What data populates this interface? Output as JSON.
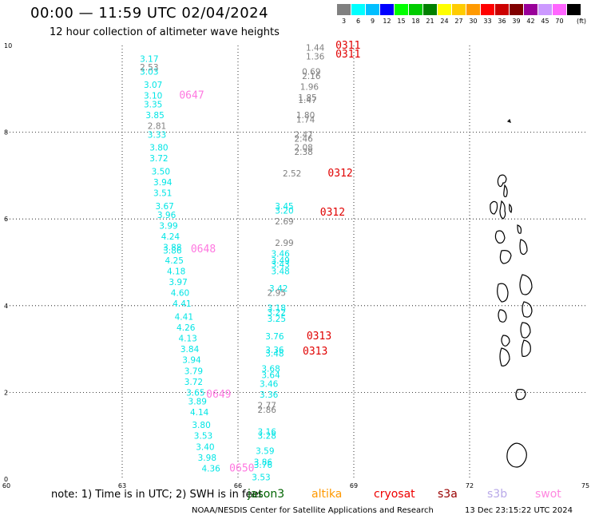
{
  "header": {
    "title": "00:00 — 11:59 UTC 02/04/2024",
    "subtitle": "12 hour collection of altimeter wave heights"
  },
  "colorbar": {
    "unit_label": "(ft)",
    "bins": [
      {
        "label": "3",
        "color": "#808080"
      },
      {
        "label": "6",
        "color": "#00ffff"
      },
      {
        "label": "9",
        "color": "#00bfff"
      },
      {
        "label": "12",
        "color": "#0000ff"
      },
      {
        "label": "15",
        "color": "#00ff00"
      },
      {
        "label": "18",
        "color": "#00cc00"
      },
      {
        "label": "21",
        "color": "#008000"
      },
      {
        "label": "24",
        "color": "#ffff00"
      },
      {
        "label": "27",
        "color": "#ffcc00"
      },
      {
        "label": "30",
        "color": "#ff9900"
      },
      {
        "label": "33",
        "color": "#ff0000"
      },
      {
        "label": "36",
        "color": "#cc0000"
      },
      {
        "label": "39",
        "color": "#800000"
      },
      {
        "label": "42",
        "color": "#990099"
      },
      {
        "label": "45",
        "color": "#cc99ff"
      },
      {
        "label": "70",
        "color": "#ff66ff"
      },
      {
        "label": "",
        "color": "#000000"
      }
    ]
  },
  "axes": {
    "x_ticks": [
      "60",
      "63",
      "66",
      "69",
      "72",
      "75"
    ],
    "y_ticks": [
      "0",
      "2",
      "4",
      "6",
      "8",
      "10"
    ]
  },
  "tracks": [
    {
      "satellite": "s3b",
      "color": "#00e5e5",
      "points": [
        {
          "lon": 63.7,
          "lat": 9.7,
          "label": "3.17"
        },
        {
          "lon": 63.7,
          "lat": 9.4,
          "label": "3.03"
        },
        {
          "lon": 63.8,
          "lat": 9.1,
          "label": "3.07"
        },
        {
          "lon": 63.8,
          "lat": 8.85,
          "label": "3.10"
        },
        {
          "lon": 63.8,
          "lat": 8.65,
          "label": "3.35"
        },
        {
          "lon": 63.85,
          "lat": 8.4,
          "label": "3.85"
        },
        {
          "lon": 63.9,
          "lat": 7.95,
          "label": "3.33"
        },
        {
          "lon": 63.95,
          "lat": 7.65,
          "label": "3.80"
        },
        {
          "lon": 63.95,
          "lat": 7.4,
          "label": "3.72"
        },
        {
          "lon": 64.0,
          "lat": 7.1,
          "label": "3.50"
        },
        {
          "lon": 64.05,
          "lat": 6.85,
          "label": "3.94"
        },
        {
          "lon": 64.05,
          "lat": 6.6,
          "label": "3.51"
        },
        {
          "lon": 64.1,
          "lat": 6.3,
          "label": "3.67"
        },
        {
          "lon": 64.15,
          "lat": 6.1,
          "label": "3.96"
        },
        {
          "lon": 64.2,
          "lat": 5.85,
          "label": "3.99"
        },
        {
          "lon": 64.25,
          "lat": 5.6,
          "label": "4.24"
        },
        {
          "lon": 64.3,
          "lat": 5.35,
          "label": "3.88"
        },
        {
          "lon": 64.3,
          "lat": 5.28,
          "label": "3.86"
        },
        {
          "lon": 64.35,
          "lat": 5.05,
          "label": "4.25"
        },
        {
          "lon": 64.4,
          "lat": 4.8,
          "label": "4.18"
        },
        {
          "lon": 64.45,
          "lat": 4.55,
          "label": "3.97"
        },
        {
          "lon": 64.5,
          "lat": 4.3,
          "label": "4.60"
        },
        {
          "lon": 64.55,
          "lat": 4.05,
          "label": "4.41"
        },
        {
          "lon": 64.6,
          "lat": 3.75,
          "label": "4.41"
        },
        {
          "lon": 64.65,
          "lat": 3.5,
          "label": "4.26"
        },
        {
          "lon": 64.7,
          "lat": 3.25,
          "label": "4.13"
        },
        {
          "lon": 64.75,
          "lat": 3.0,
          "label": "3.84"
        },
        {
          "lon": 64.8,
          "lat": 2.75,
          "label": "3.94"
        },
        {
          "lon": 64.85,
          "lat": 2.5,
          "label": "3.79"
        },
        {
          "lon": 64.85,
          "lat": 2.25,
          "label": "3.72"
        },
        {
          "lon": 64.9,
          "lat": 2.0,
          "label": "3.65"
        },
        {
          "lon": 64.95,
          "lat": 1.8,
          "label": "3.89"
        },
        {
          "lon": 65.0,
          "lat": 1.55,
          "label": "4.14"
        },
        {
          "lon": 65.05,
          "lat": 1.25,
          "label": "3.80"
        },
        {
          "lon": 65.1,
          "lat": 1.0,
          "label": "3.53"
        },
        {
          "lon": 65.15,
          "lat": 0.75,
          "label": "3.40"
        },
        {
          "lon": 65.2,
          "lat": 0.5,
          "label": "3.98"
        },
        {
          "lon": 65.3,
          "lat": 0.25,
          "label": "4.36"
        }
      ]
    },
    {
      "satellite": "jason3",
      "color": "#00e5e5",
      "points": [
        {
          "lon": 67.2,
          "lat": 6.3,
          "label": "3.45"
        },
        {
          "lon": 67.2,
          "lat": 6.2,
          "label": "3.20"
        },
        {
          "lon": 67.1,
          "lat": 5.2,
          "label": "3.46"
        },
        {
          "lon": 67.1,
          "lat": 5.05,
          "label": "3.49"
        },
        {
          "lon": 67.1,
          "lat": 4.95,
          "label": "3.43"
        },
        {
          "lon": 67.1,
          "lat": 4.8,
          "label": "3.48"
        },
        {
          "lon": 67.05,
          "lat": 4.4,
          "label": "3.42"
        },
        {
          "lon": 67.0,
          "lat": 3.95,
          "label": "3.18"
        },
        {
          "lon": 67.0,
          "lat": 3.85,
          "label": "3.22"
        },
        {
          "lon": 67.0,
          "lat": 3.7,
          "label": "3.25"
        },
        {
          "lon": 66.95,
          "lat": 3.3,
          "label": "3.76"
        },
        {
          "lon": 66.95,
          "lat": 2.98,
          "label": "3.36"
        },
        {
          "lon": 66.95,
          "lat": 2.9,
          "label": "3.48"
        },
        {
          "lon": 66.85,
          "lat": 2.55,
          "label": "3.68"
        },
        {
          "lon": 66.85,
          "lat": 2.4,
          "label": "3.64"
        },
        {
          "lon": 66.8,
          "lat": 2.2,
          "label": "3.46"
        },
        {
          "lon": 66.8,
          "lat": 1.95,
          "label": "3.36"
        },
        {
          "lon": 66.75,
          "lat": 1.1,
          "label": "3.16"
        },
        {
          "lon": 66.75,
          "lat": 1.0,
          "label": "3.28"
        },
        {
          "lon": 66.7,
          "lat": 0.65,
          "label": "3.59"
        },
        {
          "lon": 66.65,
          "lat": 0.4,
          "label": "3.86"
        },
        {
          "lon": 66.65,
          "lat": 0.33,
          "label": "3.76"
        },
        {
          "lon": 66.6,
          "lat": 0.05,
          "label": "3.53"
        }
      ]
    },
    {
      "satellite": "grey",
      "color": "#808080",
      "points": [
        {
          "lon": 63.7,
          "lat": 9.5,
          "label": "2.53"
        },
        {
          "lon": 63.9,
          "lat": 8.15,
          "label": "2.81"
        },
        {
          "lon": 68.0,
          "lat": 9.95,
          "label": "1.44"
        },
        {
          "lon": 68.0,
          "lat": 9.75,
          "label": "1.36"
        },
        {
          "lon": 67.9,
          "lat": 9.4,
          "label": "0.69"
        },
        {
          "lon": 67.9,
          "lat": 9.3,
          "label": "2.16"
        },
        {
          "lon": 67.85,
          "lat": 9.05,
          "label": "1.96"
        },
        {
          "lon": 67.8,
          "lat": 8.8,
          "label": "1.85"
        },
        {
          "lon": 67.8,
          "lat": 8.75,
          "label": "1.47"
        },
        {
          "lon": 67.75,
          "lat": 8.4,
          "label": "1.80"
        },
        {
          "lon": 67.75,
          "lat": 8.3,
          "label": "1.74"
        },
        {
          "lon": 67.7,
          "lat": 7.95,
          "label": "2.47"
        },
        {
          "lon": 67.7,
          "lat": 7.85,
          "label": "2.46"
        },
        {
          "lon": 67.7,
          "lat": 7.65,
          "label": "2.08"
        },
        {
          "lon": 67.7,
          "lat": 7.55,
          "label": "2.38"
        },
        {
          "lon": 67.4,
          "lat": 7.05,
          "label": "2.52"
        },
        {
          "lon": 67.2,
          "lat": 5.95,
          "label": "2.69"
        },
        {
          "lon": 67.2,
          "lat": 5.45,
          "label": "2.99"
        },
        {
          "lon": 67.0,
          "lat": 4.3,
          "label": "2.95"
        },
        {
          "lon": 66.75,
          "lat": 1.7,
          "label": "2.77"
        },
        {
          "lon": 66.75,
          "lat": 1.6,
          "label": "2.86"
        }
      ]
    },
    {
      "satellite": "swot",
      "color": "#ff77e0",
      "points": [
        {
          "lon": 64.8,
          "lat": 8.85,
          "label": "0647"
        },
        {
          "lon": 65.1,
          "lat": 5.3,
          "label": "0648"
        },
        {
          "lon": 65.5,
          "lat": 1.95,
          "label": "0649"
        },
        {
          "lon": 66.1,
          "lat": 0.25,
          "label": "0650"
        }
      ]
    },
    {
      "satellite": "cryosat",
      "color": "#e00000",
      "points": [
        {
          "lon": 68.85,
          "lat": 10.0,
          "label": "0311"
        },
        {
          "lon": 68.85,
          "lat": 9.8,
          "label": "0311"
        },
        {
          "lon": 68.65,
          "lat": 7.05,
          "label": "0312"
        },
        {
          "lon": 68.45,
          "lat": 6.15,
          "label": "0312"
        },
        {
          "lon": 68.1,
          "lat": 3.3,
          "label": "0313"
        },
        {
          "lon": 68.0,
          "lat": 2.95,
          "label": "0313"
        }
      ]
    }
  ],
  "footer": {
    "note": "note: 1) Time is in UTC; 2) SWH is in feet",
    "legend": [
      {
        "label": "jason3",
        "color": "#006400"
      },
      {
        "label": "altika",
        "color": "#ff9900"
      },
      {
        "label": "cryosat",
        "color": "#ee0000"
      },
      {
        "label": "s3a",
        "color": "#990000"
      },
      {
        "label": "s3b",
        "color": "#b8a8e8"
      },
      {
        "label": "swot",
        "color": "#ff88e0"
      }
    ],
    "credit": "NOAA/NESDIS Center for Satellite Applications and Research",
    "timestamp": "13 Dec 23:15:22 UTC 2024"
  }
}
